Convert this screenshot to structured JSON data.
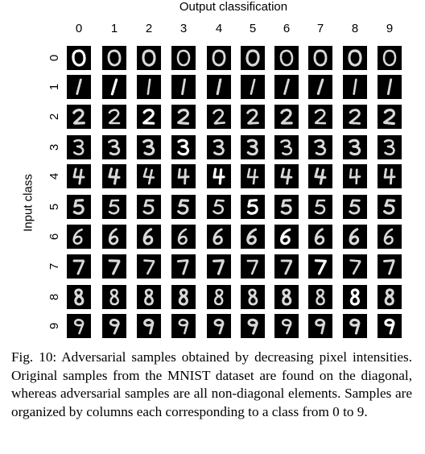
{
  "figure": {
    "column_axis_title": "Output classification",
    "row_axis_title": "Input class",
    "column_labels": [
      "0",
      "1",
      "2",
      "3",
      "4",
      "5",
      "6",
      "7",
      "8",
      "9"
    ],
    "row_labels": [
      "0",
      "1",
      "2",
      "3",
      "4",
      "5",
      "6",
      "7",
      "8",
      "9"
    ],
    "digit_stroke_color": "#ffffff",
    "tile_background_color": "#000000"
  },
  "caption": {
    "label": "Fig. 10:",
    "text": "Adversarial samples obtained by decreasing pixel intensities. Original samples from the MNIST dataset are found on the diagonal, whereas adversarial samples are all non-diagonal elements. Samples are organized by columns each corresponding to a class from 0 to 9."
  }
}
